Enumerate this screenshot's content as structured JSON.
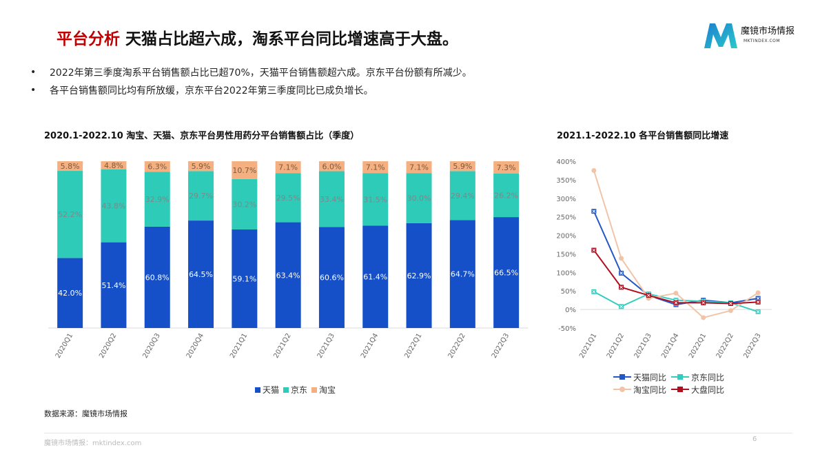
{
  "header": {
    "title_red": "平台分析",
    "title_rest": "天猫占比超六成，淘系平台同比增速高于大盘。",
    "logo_text": "魔镜市场情报",
    "logo_sub": "MKTINDEX.COM"
  },
  "bullets": [
    "2022年第三季度淘系平台销售额占比已超70%，天猫平台销售额超六成。京东平台份额有所减少。",
    "各平台销售额同比均有所放缓，京东平台2022年第三季度同比已成负增长。"
  ],
  "bullet_symbol": "•",
  "chart_data": [
    {
      "type": "bar",
      "stacked": true,
      "title": "2020.1-2022.10 淘宝、天猫、京东平台男性用药分平台销售额占比（季度）",
      "categories": [
        "2020Q1",
        "2020Q2",
        "2020Q3",
        "2020Q4",
        "2021Q1",
        "2021Q2",
        "2021Q3",
        "2021Q4",
        "2022Q1",
        "2022Q2",
        "2022Q3"
      ],
      "series": [
        {
          "name": "天猫",
          "color": "#1550c8",
          "values": [
            42.0,
            51.4,
            60.8,
            64.5,
            59.1,
            63.4,
            60.6,
            61.4,
            62.9,
            64.7,
            66.5
          ],
          "labels": [
            "42.0%",
            "51.4%",
            "60.8%",
            "64.5%",
            "59.1%",
            "63.4%",
            "60.6%",
            "61.4%",
            "62.9%",
            "64.7%",
            "66.5%"
          ]
        },
        {
          "name": "京东",
          "color": "#2ecbb8",
          "values": [
            52.2,
            43.8,
            32.9,
            29.7,
            30.2,
            29.5,
            33.4,
            31.5,
            30.0,
            29.4,
            26.2
          ],
          "labels": [
            "52.2%",
            "43.8%",
            "32.9%",
            "29.7%",
            "30.2%",
            "29.5%",
            "33.4%",
            "31.5%",
            "30.0%",
            "29.4%",
            "26.2%"
          ]
        },
        {
          "name": "淘宝",
          "color": "#f4b081",
          "values": [
            5.8,
            4.8,
            6.3,
            5.9,
            10.7,
            7.1,
            6.0,
            7.1,
            7.1,
            5.9,
            7.3
          ],
          "labels": [
            "5.8%",
            "4.8%",
            "6.3%",
            "5.9%",
            "10.7%",
            "7.1%",
            "6.0%",
            "7.1%",
            "7.1%",
            "5.9%",
            "7.3%"
          ]
        }
      ],
      "ylim": [
        0,
        100
      ],
      "legend": "bottom"
    },
    {
      "type": "line",
      "title": "2021.1-2022.10 各平台销售额同比增速",
      "categories": [
        "2021Q1",
        "2021Q2",
        "2021Q3",
        "2021Q4",
        "2022Q1",
        "2022Q2",
        "2022Q3"
      ],
      "series": [
        {
          "name": "天猫同比",
          "color": "#2457c5",
          "marker": "x-square",
          "values": [
            265,
            98,
            38,
            13,
            25,
            18,
            30
          ]
        },
        {
          "name": "京东同比",
          "color": "#33cdbf",
          "marker": "x-square",
          "values": [
            48,
            8,
            42,
            25,
            22,
            18,
            -6
          ]
        },
        {
          "name": "淘宝同比",
          "color": "#f1c4a8",
          "marker": "circle",
          "values": [
            375,
            138,
            30,
            44,
            -22,
            -3,
            45
          ]
        },
        {
          "name": "大盘同比",
          "color": "#b00f1f",
          "marker": "x-square",
          "values": [
            160,
            60,
            38,
            18,
            18,
            16,
            20
          ]
        }
      ],
      "ylim": [
        -50,
        400
      ],
      "yticks": [
        -50,
        0,
        50,
        100,
        150,
        200,
        250,
        300,
        350,
        400
      ],
      "ytick_labels": [
        "-50%",
        "0%",
        "50%",
        "100%",
        "150%",
        "200%",
        "250%",
        "300%",
        "350%",
        "400%"
      ],
      "legend": "bottom"
    }
  ],
  "source": "数据来源：魔镜市场情报",
  "footer": "魔镜市场情报：mktindex.com",
  "page_number": "6"
}
